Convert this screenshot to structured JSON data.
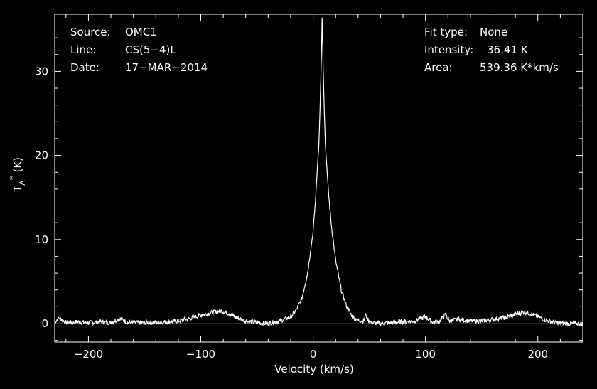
{
  "chart_data": {
    "type": "line",
    "xlabel": "Velocity (km/s)",
    "ylabel_main": "T",
    "ylabel_sub": "A",
    "ylabel_sup": "*",
    "ylabel_unit": "(K)",
    "xlim": [
      -230,
      240
    ],
    "ylim": [
      -2.2,
      36.8
    ],
    "x_ticks": [
      -200,
      -100,
      0,
      100,
      200
    ],
    "x_tick_labels": [
      "−200",
      "−100",
      "0",
      "100",
      "200"
    ],
    "y_ticks": [
      0,
      10,
      20,
      30
    ],
    "y_tick_labels": [
      "0",
      "10",
      "20",
      "30"
    ],
    "baseline": 0,
    "series": [
      {
        "points": [
          [
            -230,
            0.2
          ],
          [
            -226,
            0.7
          ],
          [
            -220,
            0.1
          ],
          [
            -210,
            0.2
          ],
          [
            -200,
            0.1
          ],
          [
            -190,
            0.2
          ],
          [
            -180,
            0.1
          ],
          [
            -172,
            0.6
          ],
          [
            -165,
            0.1
          ],
          [
            -150,
            0.1
          ],
          [
            -140,
            0.15
          ],
          [
            -130,
            0.2
          ],
          [
            -120,
            0.3
          ],
          [
            -110,
            0.6
          ],
          [
            -100,
            1.0
          ],
          [
            -90,
            1.3
          ],
          [
            -82,
            1.5
          ],
          [
            -75,
            1.2
          ],
          [
            -68,
            0.7
          ],
          [
            -60,
            0.3
          ],
          [
            -50,
            0.1
          ],
          [
            -40,
            0.0
          ],
          [
            -30,
            0.3
          ],
          [
            -20,
            0.8
          ],
          [
            -15,
            1.6
          ],
          [
            -10,
            3.0
          ],
          [
            -5,
            6.0
          ],
          [
            0,
            11.0
          ],
          [
            2,
            14.5
          ],
          [
            4,
            19.0
          ],
          [
            5,
            21.0
          ],
          [
            6,
            25.0
          ],
          [
            7,
            30.0
          ],
          [
            8,
            36.4
          ],
          [
            9,
            30.0
          ],
          [
            10,
            25.0
          ],
          [
            11,
            21.0
          ],
          [
            12,
            19.0
          ],
          [
            14,
            15.0
          ],
          [
            16,
            12.0
          ],
          [
            20,
            7.5
          ],
          [
            25,
            4.0
          ],
          [
            30,
            2.0
          ],
          [
            35,
            0.8
          ],
          [
            40,
            0.4
          ],
          [
            45,
            0.3
          ],
          [
            47,
            1.2
          ],
          [
            48,
            0.6
          ],
          [
            52,
            0.1
          ],
          [
            60,
            0.0
          ],
          [
            70,
            0.1
          ],
          [
            80,
            0.2
          ],
          [
            90,
            0.3
          ],
          [
            100,
            0.8
          ],
          [
            106,
            0.2
          ],
          [
            112,
            0.2
          ],
          [
            118,
            1.1
          ],
          [
            121,
            0.3
          ],
          [
            130,
            0.5
          ],
          [
            140,
            0.3
          ],
          [
            150,
            0.3
          ],
          [
            160,
            0.5
          ],
          [
            170,
            0.7
          ],
          [
            180,
            1.1
          ],
          [
            188,
            1.4
          ],
          [
            195,
            1.1
          ],
          [
            205,
            0.5
          ],
          [
            215,
            0.1
          ],
          [
            225,
            0.0
          ],
          [
            240,
            0.0
          ]
        ]
      }
    ]
  },
  "info": {
    "source_label": "Source:",
    "source_value": "OMC1",
    "line_label": "Line:",
    "line_value": "CS(5−4)L",
    "date_label": "Date:",
    "date_value": "17−MAR−2014",
    "fit_label": "Fit type:",
    "fit_value": "None",
    "intensity_label": "Intensity:",
    "intensity_value": "36.41 K",
    "area_label": "Area:",
    "area_value": "539.36 K*km/s"
  },
  "colors": {
    "background": "#000000",
    "frame": "#ffffff",
    "spectrum": "#ffffff",
    "baseline": "#d01010"
  }
}
